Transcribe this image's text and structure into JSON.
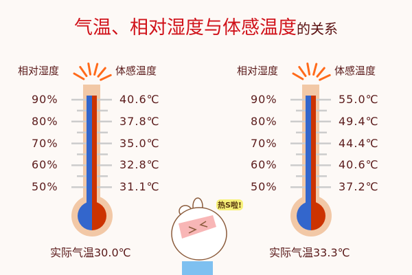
{
  "title": {
    "main": "气温、相对湿度与体感温度",
    "sub": "的关系"
  },
  "colors": {
    "title": "#d0121a",
    "text": "#5a1a1a",
    "tube": "#f2c8a6",
    "cold": "#3366cc",
    "hot": "#cc3300",
    "rays": "#ff6a1a"
  },
  "panels": [
    {
      "humidity_label": "相对湿度",
      "feels_label": "体感温度",
      "humidity": [
        "90%",
        "80%",
        "70%",
        "60%",
        "50%"
      ],
      "feels": [
        "40.6℃",
        "37.8℃",
        "35.0℃",
        "32.8℃",
        "31.1℃"
      ],
      "actual": "实际气温30.0℃"
    },
    {
      "humidity_label": "相对湿度",
      "feels_label": "体感温度",
      "humidity": [
        "90%",
        "80%",
        "70%",
        "60%",
        "50%"
      ],
      "feels": [
        "55.0℃",
        "49.4℃",
        "44.4℃",
        "40.6℃",
        "37.2℃"
      ],
      "actual": "实际气温33.3℃"
    }
  ],
  "sticker": {
    "text": "热S啦!"
  }
}
